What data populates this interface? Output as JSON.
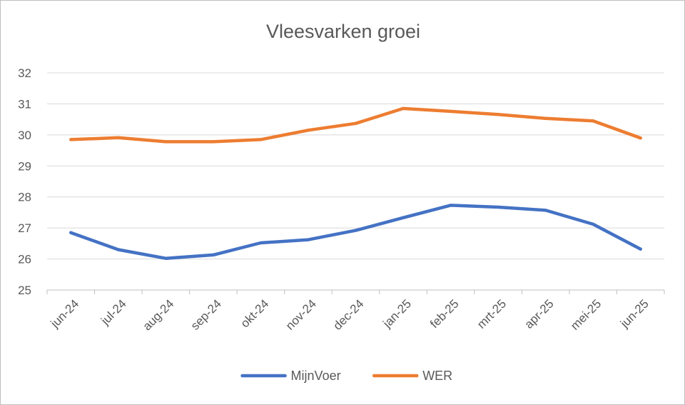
{
  "chart_data": {
    "type": "line",
    "title": "Vleesvarken groei",
    "categories": [
      "jun-24",
      "jul-24",
      "aug-24",
      "sep-24",
      "okt-24",
      "nov-24",
      "dec-24",
      "jan-25",
      "feb-25",
      "mrt-25",
      "apr-25",
      "mei-25",
      "jun-25"
    ],
    "series": [
      {
        "name": "MijnVoer",
        "color": "#4472c4",
        "values": [
          26.85,
          26.3,
          26.02,
          26.13,
          26.52,
          26.62,
          26.92,
          27.33,
          27.73,
          27.67,
          27.57,
          27.12,
          26.32
        ]
      },
      {
        "name": "WER",
        "color": "#ed7d31",
        "values": [
          29.85,
          29.91,
          29.78,
          29.78,
          29.85,
          30.15,
          30.37,
          30.85,
          30.76,
          30.66,
          30.53,
          30.45,
          29.9
        ]
      }
    ],
    "ylim": [
      25,
      32
    ],
    "yticks": [
      25,
      26,
      27,
      28,
      29,
      30,
      31,
      32
    ],
    "grid": true,
    "legend": "bottom",
    "xlabel": "",
    "ylabel": ""
  }
}
